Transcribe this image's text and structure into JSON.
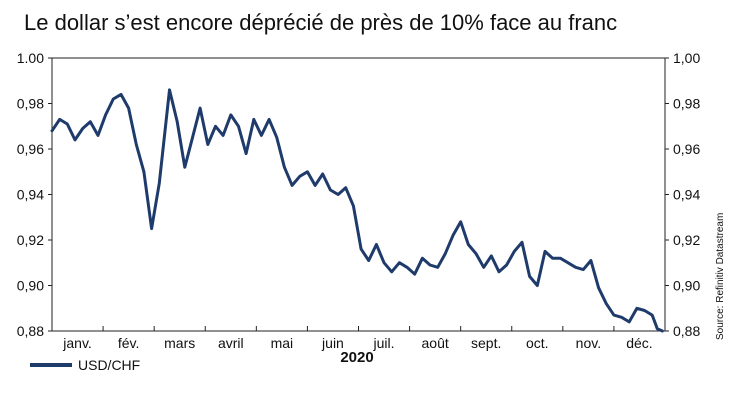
{
  "title": "Le dollar s’est encore déprécié de près de 10% face au franc",
  "source": "Source: Refinitiv Datastream",
  "year_label": "2020",
  "legend": {
    "series_name": "USD/CHF",
    "color": "#1f3b6b"
  },
  "chart_data": {
    "type": "line",
    "title": "Le dollar s’est encore déprécié de près de 10% face au franc",
    "xlabel": "2020",
    "ylabel": "",
    "ylim": [
      0.88,
      1.0
    ],
    "y_ticks": [
      0.88,
      0.9,
      0.92,
      0.94,
      0.96,
      0.98,
      1.0
    ],
    "y_tick_labels": [
      "0,88",
      "0,90",
      "0,92",
      "0,94",
      "0,96",
      "0,98",
      "1.00"
    ],
    "y_tick_labels_right": [
      "0,88",
      "0,90",
      "0,92",
      "0,94",
      "0,96",
      "0,98",
      "1,00"
    ],
    "x_months": [
      "janv.",
      "fév.",
      "mars",
      "avril",
      "mai",
      "juin",
      "juil.",
      "août",
      "sept.",
      "oct.",
      "nov.",
      "déc."
    ],
    "grid": false,
    "legend_position": "bottom-left",
    "series": [
      {
        "name": "USD/CHF",
        "color": "#1f3b6b",
        "x": [
          0.0,
          0.15,
          0.3,
          0.45,
          0.6,
          0.75,
          0.9,
          1.05,
          1.2,
          1.35,
          1.5,
          1.65,
          1.8,
          1.95,
          2.1,
          2.3,
          2.45,
          2.6,
          2.75,
          2.9,
          3.05,
          3.2,
          3.35,
          3.5,
          3.65,
          3.8,
          3.95,
          4.1,
          4.25,
          4.4,
          4.55,
          4.7,
          4.85,
          5.0,
          5.15,
          5.3,
          5.45,
          5.6,
          5.75,
          5.9,
          6.05,
          6.2,
          6.35,
          6.5,
          6.65,
          6.8,
          6.95,
          7.1,
          7.25,
          7.4,
          7.55,
          7.7,
          7.85,
          8.0,
          8.15,
          8.3,
          8.45,
          8.6,
          8.75,
          8.9,
          9.05,
          9.2,
          9.35,
          9.5,
          9.65,
          9.8,
          9.95,
          10.1,
          10.25,
          10.4,
          10.55,
          10.7,
          10.85,
          11.0,
          11.15,
          11.3,
          11.45,
          11.6,
          11.75,
          11.85,
          11.95
        ],
        "values": [
          0.968,
          0.973,
          0.971,
          0.964,
          0.969,
          0.972,
          0.966,
          0.975,
          0.982,
          0.984,
          0.978,
          0.962,
          0.95,
          0.925,
          0.945,
          0.986,
          0.972,
          0.952,
          0.965,
          0.978,
          0.962,
          0.97,
          0.966,
          0.975,
          0.97,
          0.958,
          0.973,
          0.966,
          0.973,
          0.965,
          0.952,
          0.944,
          0.948,
          0.95,
          0.944,
          0.949,
          0.942,
          0.94,
          0.943,
          0.935,
          0.916,
          0.911,
          0.918,
          0.91,
          0.906,
          0.91,
          0.908,
          0.905,
          0.912,
          0.909,
          0.908,
          0.914,
          0.922,
          0.928,
          0.918,
          0.914,
          0.908,
          0.913,
          0.906,
          0.909,
          0.915,
          0.919,
          0.904,
          0.9,
          0.915,
          0.912,
          0.912,
          0.91,
          0.908,
          0.907,
          0.911,
          0.899,
          0.892,
          0.887,
          0.886,
          0.884,
          0.89,
          0.889,
          0.887,
          0.881,
          0.88
        ]
      }
    ]
  }
}
